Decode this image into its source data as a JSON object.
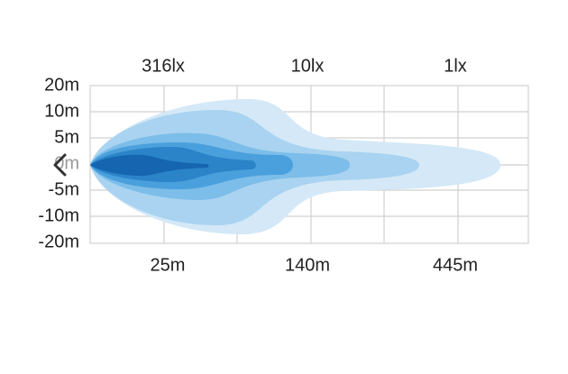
{
  "lux_labels": [
    "316lx",
    "10lx",
    "1lx"
  ],
  "y_labels": [
    "20m",
    "10m",
    "5m",
    "0m",
    "-5m",
    "-10m",
    "-20m"
  ],
  "x_labels": [
    "25m",
    "140m",
    "445m"
  ]
}
